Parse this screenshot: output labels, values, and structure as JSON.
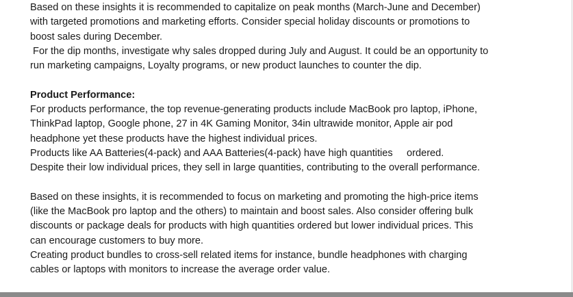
{
  "document": {
    "lines_top": [
      "Based on these insights it is recommended to capitalize on peak months (March-June and December)",
      "with targeted promotions and marketing efforts. Consider special holiday discounts or promotions to",
      "boost sales during December.",
      " For the dip months, investigate why sales dropped during July and August. It could be an opportunity to",
      "run marketing campaigns, Loyalty programs, or new product launches to counter the dip."
    ],
    "heading": "Product Performance:",
    "lines_middle": [
      "For products performance, the top revenue-generating products include MacBook pro laptop, iPhone,",
      "ThinkPad laptop, Google phone, 27 in 4K Gaming Monitor, 34in ultrawide monitor, Apple air pod",
      "headphone yet these products have the highest individual prices.",
      "Products like AA Batteries(4-pack) and AAA Batteries(4-pack) have high quantities     ordered.",
      "Despite their low individual prices, they sell in large quantities, contributing to the overall performance."
    ],
    "lines_bottom": [
      "Based on these insights, it is recommended to focus on marketing and promoting the high-price items",
      "(like the MacBook pro laptop and the others) to maintain and boost sales. Also consider offering bulk",
      "discounts or package deals for products with high quantities ordered but lower individual prices. This",
      "can encourage customers to buy more.",
      "Creating product bundles to cross-sell related items for instance, bundle headphones with charging",
      "cables or laptops with monitors to increase the average order value."
    ]
  }
}
